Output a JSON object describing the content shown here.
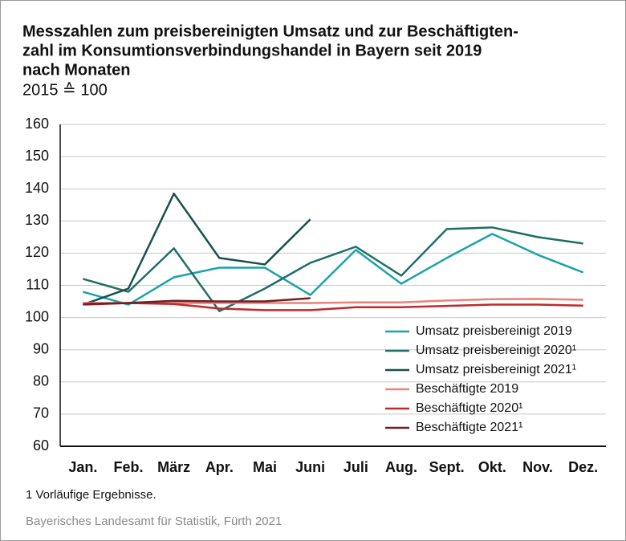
{
  "chart_data": {
    "type": "line",
    "title": [
      "Messzahlen zum preisbereinigten Umsatz und zur Beschäftigten-",
      "zahl im Konsumtionsverbindungshandel in Bayern seit 2019",
      "nach Monaten"
    ],
    "subtitle": "2015 ≙ 100",
    "categories": [
      "Jan.",
      "Feb.",
      "März",
      "Apr.",
      "Mai",
      "Juni",
      "Juli",
      "Aug.",
      "Sept.",
      "Okt.",
      "Nov.",
      "Dez."
    ],
    "series": [
      {
        "name": "Umsatz preisbereinigt 2019",
        "color": "#1ba3a6",
        "values": [
          108,
          104,
          112.5,
          115.5,
          115.5,
          107,
          121,
          110.5,
          118.5,
          126,
          119.5,
          114
        ]
      },
      {
        "name": "Umsatz preisbereinigt 2020¹",
        "color": "#1f6e69",
        "values": [
          112,
          108,
          121.5,
          102,
          109,
          117,
          122,
          113,
          127.5,
          128,
          125,
          123
        ]
      },
      {
        "name": "Umsatz preisbereinigt 2021¹",
        "color": "#17504c",
        "values": [
          104,
          109,
          138.5,
          118.5,
          116.5,
          130.5,
          null,
          null,
          null,
          null,
          null,
          null
        ]
      },
      {
        "name": "Beschäftigte 2019",
        "color": "#e8827a",
        "values": [
          104.5,
          104.5,
          104.5,
          104.5,
          104.5,
          104.5,
          104.7,
          104.7,
          105.3,
          105.7,
          105.8,
          105.5
        ]
      },
      {
        "name": "Beschäftigte 2020¹",
        "color": "#c0282d",
        "values": [
          104,
          104.5,
          104.2,
          102.8,
          102.3,
          102.3,
          103.2,
          103.2,
          103.6,
          104,
          104,
          103.7
        ]
      },
      {
        "name": "Beschäftigte 2021¹",
        "color": "#6e1f22",
        "values": [
          104.2,
          104.5,
          105.2,
          105,
          105,
          106,
          null,
          null,
          null,
          null,
          null,
          null
        ]
      }
    ],
    "ylim": [
      60,
      160
    ],
    "yticks": [
      60,
      70,
      80,
      90,
      100,
      110,
      120,
      130,
      140,
      150,
      160
    ],
    "grid": true,
    "legend": "lower right",
    "footnote": "1  Vorläufige Ergebnisse.",
    "source": "Bayerisches Landesamt für Statistik, Fürth 2021"
  }
}
